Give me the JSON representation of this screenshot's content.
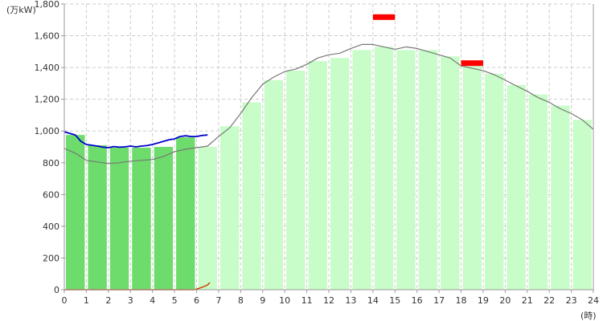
{
  "chart_data": {
    "type": "bar",
    "y_unit_label": "(万kW)",
    "x_unit_label": "(時)",
    "ylim": [
      0,
      1800
    ],
    "y_ticks": [
      "0",
      "200",
      "400",
      "600",
      "800",
      "1,000",
      "1,200",
      "1,400",
      "1,600",
      "1,800"
    ],
    "y_tick_values": [
      0,
      200,
      400,
      600,
      800,
      1000,
      1200,
      1400,
      1600,
      1800
    ],
    "xlim": [
      0,
      24
    ],
    "x_ticks": [
      "0",
      "1",
      "2",
      "3",
      "4",
      "5",
      "6",
      "7",
      "8",
      "9",
      "10",
      "11",
      "12",
      "13",
      "14",
      "15",
      "16",
      "17",
      "18",
      "19",
      "20",
      "21",
      "22",
      "23",
      "24"
    ],
    "x_tick_values": [
      0,
      1,
      2,
      3,
      4,
      5,
      6,
      7,
      8,
      9,
      10,
      11,
      12,
      13,
      14,
      15,
      16,
      17,
      18,
      19,
      20,
      21,
      22,
      23,
      24
    ],
    "grid": true,
    "colors": {
      "actual_bar": "#6ddc6d",
      "forecast_bar": "#c8fcc8",
      "today_line": "#0000cc",
      "yesterday_line": "#777777",
      "solar_line": "#cc4400",
      "peak_marker": "#ff0000",
      "grid": "#cccccc",
      "axis": "#999999"
    },
    "bars": {
      "hours": [
        0,
        1,
        2,
        3,
        4,
        5,
        6,
        7,
        8,
        9,
        10,
        11,
        12,
        13,
        14,
        15,
        16,
        17,
        18,
        19,
        20,
        21,
        22,
        23
      ],
      "values": [
        975,
        910,
        895,
        895,
        900,
        960,
        900,
        1030,
        1180,
        1320,
        1380,
        1440,
        1460,
        1510,
        1530,
        1510,
        1510,
        1470,
        1410,
        1360,
        1290,
        1230,
        1160,
        1070
      ],
      "status": [
        "actual",
        "actual",
        "actual",
        "actual",
        "actual",
        "actual",
        "forecast",
        "forecast",
        "forecast",
        "forecast",
        "forecast",
        "forecast",
        "forecast",
        "forecast",
        "forecast",
        "forecast",
        "forecast",
        "forecast",
        "forecast",
        "forecast",
        "forecast",
        "forecast",
        "forecast",
        "forecast"
      ]
    },
    "series": [
      {
        "key": "today",
        "x": [
          0,
          0.25,
          0.5,
          0.75,
          1,
          1.25,
          1.5,
          1.75,
          2,
          2.25,
          2.5,
          2.75,
          3,
          3.25,
          3.5,
          3.75,
          4,
          4.25,
          4.5,
          4.75,
          5,
          5.25,
          5.5,
          5.75,
          6,
          6.25,
          6.5
        ],
        "values": [
          995,
          985,
          975,
          935,
          915,
          910,
          905,
          898,
          895,
          902,
          898,
          900,
          905,
          900,
          905,
          908,
          915,
          925,
          935,
          945,
          950,
          965,
          970,
          965,
          965,
          972,
          975
        ]
      },
      {
        "key": "yesterday",
        "x": [
          0,
          0.5,
          1,
          1.5,
          2,
          2.5,
          3,
          3.5,
          4,
          4.5,
          5,
          5.5,
          6,
          6.5,
          7,
          7.5,
          8,
          8.5,
          9,
          9.5,
          10,
          10.5,
          11,
          11.5,
          12,
          12.5,
          13,
          13.5,
          14,
          14.5,
          15,
          15.5,
          16,
          16.5,
          17,
          17.5,
          18,
          18.5,
          19,
          19.5,
          20,
          20.5,
          21,
          21.5,
          22,
          22.5,
          23,
          23.5,
          24
        ],
        "values": [
          890,
          860,
          815,
          805,
          795,
          800,
          810,
          815,
          820,
          840,
          870,
          885,
          895,
          905,
          965,
          1020,
          1110,
          1210,
          1295,
          1340,
          1375,
          1390,
          1420,
          1460,
          1480,
          1490,
          1520,
          1545,
          1545,
          1530,
          1515,
          1530,
          1520,
          1500,
          1480,
          1460,
          1410,
          1395,
          1380,
          1355,
          1320,
          1285,
          1250,
          1210,
          1180,
          1140,
          1110,
          1070,
          1010
        ]
      },
      {
        "key": "solar",
        "x": [
          0,
          1,
          2,
          3,
          4,
          5,
          5.9,
          6.1,
          6.3,
          6.5,
          6.6
        ],
        "values": [
          0,
          0,
          0,
          0,
          0,
          0,
          0,
          8,
          18,
          30,
          45
        ]
      }
    ],
    "peak_markers": [
      {
        "hour": 14,
        "value": 1720
      },
      {
        "hour": 18,
        "value": 1430
      }
    ]
  }
}
